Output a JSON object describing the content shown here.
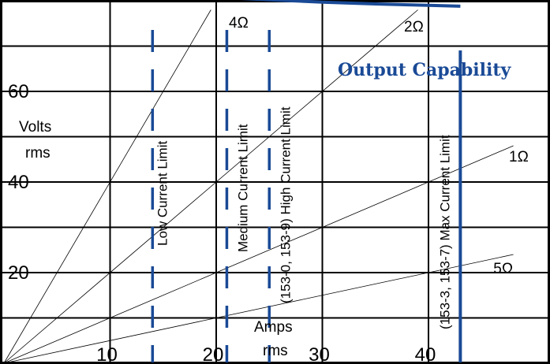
{
  "chart_data": {
    "type": "line",
    "title": "Output Capability",
    "xlabel": "Amps rms",
    "xlabel_lines": [
      "Amps",
      "rms"
    ],
    "ylabel_lines": [
      "Volts",
      "rms"
    ],
    "xlim": [
      0,
      48
    ],
    "ylim": [
      0,
      80
    ],
    "x_ticks": [
      10,
      20,
      30,
      40
    ],
    "y_ticks": [
      20,
      40,
      60
    ],
    "grid": true,
    "load_lines": [
      {
        "label": "4Ω",
        "ohms": 4
      },
      {
        "label": "2Ω",
        "ohms": 2
      },
      {
        "label": "1Ω",
        "ohms": 1
      },
      {
        "label": ".5Ω",
        "ohms": 0.5
      }
    ],
    "current_limits": [
      {
        "label": "Low Current Limit",
        "amps": 14,
        "style": "dashed"
      },
      {
        "label": "Medium Current Limit",
        "amps": 21,
        "style": "dashed"
      },
      {
        "label": "(153-0, 153-9) High Current Limit",
        "amps": 25,
        "style": "dashed"
      },
      {
        "label": "(153-3, 153-7) Max Current Limit",
        "amps": 43,
        "style": "solid"
      }
    ],
    "output_capability": {
      "name": "Output Capability",
      "x": [
        0,
        5,
        10,
        15,
        20,
        25,
        30,
        35,
        40,
        43
      ],
      "y": [
        86,
        84,
        82.6,
        81.6,
        80.8,
        80.2,
        79.7,
        79.3,
        79.0,
        78.8
      ]
    }
  },
  "colors": {
    "limit": "#1a4a96",
    "grid": "#000000",
    "background": "#ffffff"
  }
}
